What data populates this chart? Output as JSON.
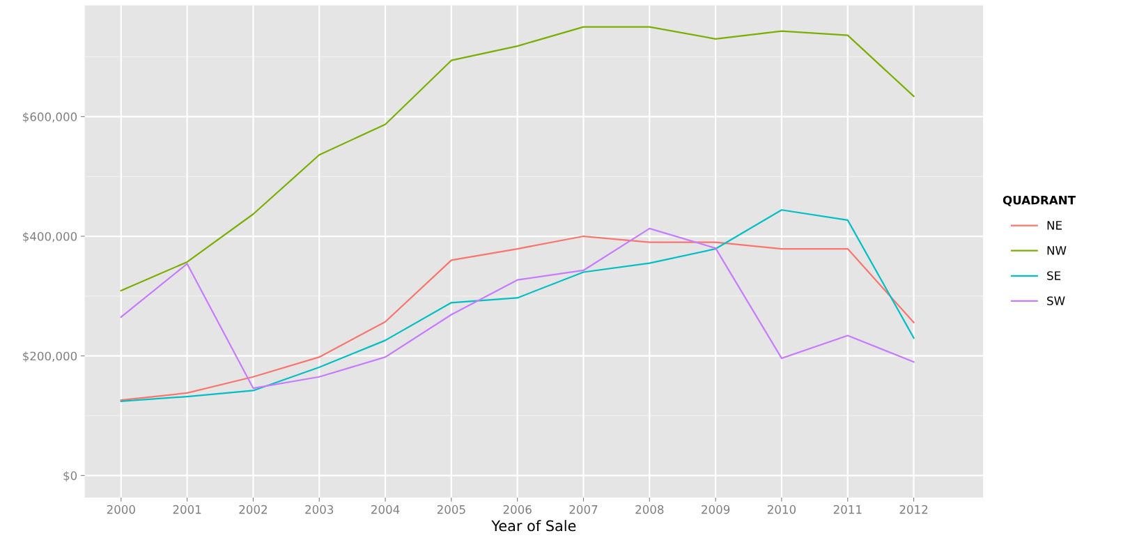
{
  "chart_data": {
    "type": "line",
    "xlabel": "Year of Sale",
    "legend_title": "QUADRANT",
    "legend": "right",
    "grid": true,
    "x": [
      2000,
      2001,
      2002,
      2003,
      2004,
      2005,
      2006,
      2007,
      2008,
      2009,
      2010,
      2011,
      2012
    ],
    "xlim": [
      1999.45,
      2013.05
    ],
    "xticks": [
      2000,
      2001,
      2002,
      2003,
      2004,
      2005,
      2006,
      2007,
      2008,
      2009,
      2010,
      2011,
      2012
    ],
    "ylim": [
      -37000,
      786000
    ],
    "yticks": [
      {
        "value": 0,
        "label": "$0"
      },
      {
        "value": 200000,
        "label": "$200,000"
      },
      {
        "value": 400000,
        "label": "$400,000"
      },
      {
        "value": 600000,
        "label": "$600,000"
      }
    ],
    "series": [
      {
        "name": "NE",
        "color": "#f8766d",
        "values": [
          126000,
          138000,
          165000,
          198000,
          257000,
          360000,
          379000,
          400000,
          390000,
          390000,
          379000,
          379000,
          256000
        ]
      },
      {
        "name": "NW",
        "color": "#7cae00",
        "values": [
          309000,
          357000,
          437000,
          536000,
          587000,
          694000,
          718000,
          750000,
          750000,
          730000,
          743000,
          736000,
          634000
        ]
      },
      {
        "name": "SE",
        "color": "#00bfc4",
        "values": [
          124000,
          132000,
          142000,
          181000,
          226000,
          289000,
          297000,
          340000,
          355000,
          379000,
          444000,
          427000,
          230000
        ]
      },
      {
        "name": "SW",
        "color": "#c77cff",
        "values": [
          265000,
          354000,
          146000,
          165000,
          198000,
          269000,
          327000,
          343000,
          413000,
          380000,
          196000,
          234000,
          190000
        ]
      }
    ]
  }
}
